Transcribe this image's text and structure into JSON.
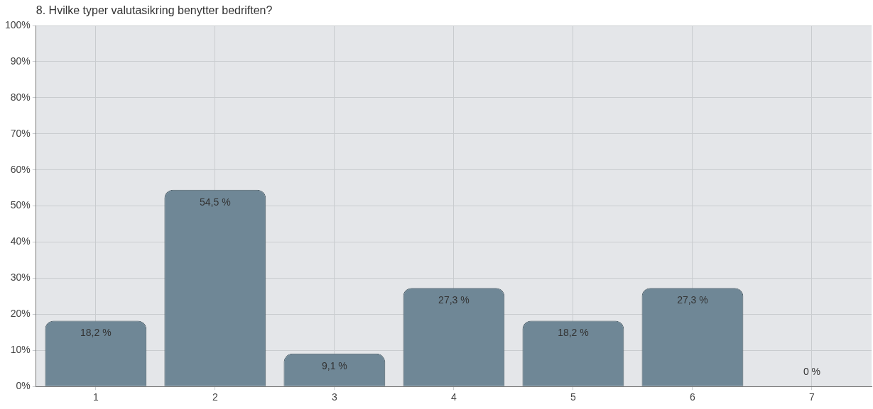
{
  "chart_data": {
    "type": "bar",
    "title": "8. Hvilke typer valutasikring benytter bedriften?",
    "categories": [
      "1",
      "2",
      "3",
      "4",
      "5",
      "6",
      "7"
    ],
    "values": [
      18.2,
      54.5,
      9.1,
      27.3,
      18.2,
      27.3,
      0
    ],
    "value_labels": [
      "18,2 %",
      "54,5 %",
      "9,1 %",
      "27,3 %",
      "18,2 %",
      "27,3 %",
      "0 %"
    ],
    "color": "#6f8796",
    "ylim": [
      0,
      100
    ],
    "yticks": [
      {
        "value": 0,
        "label": "0%"
      },
      {
        "value": 10,
        "label": "10%"
      },
      {
        "value": 20,
        "label": "20%"
      },
      {
        "value": 30,
        "label": "30%"
      },
      {
        "value": 40,
        "label": "40%"
      },
      {
        "value": 50,
        "label": "50%"
      },
      {
        "value": 60,
        "label": "60%"
      },
      {
        "value": 70,
        "label": "70%"
      },
      {
        "value": 80,
        "label": "80%"
      },
      {
        "value": 90,
        "label": "90%"
      },
      {
        "value": 100,
        "label": "100%"
      }
    ],
    "grid": true,
    "legend": false
  }
}
